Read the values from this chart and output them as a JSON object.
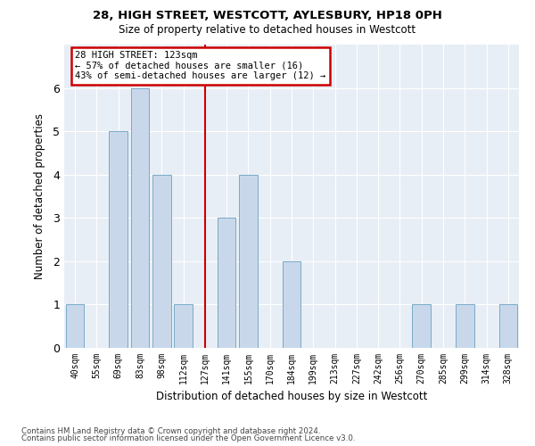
{
  "title1": "28, HIGH STREET, WESTCOTT, AYLESBURY, HP18 0PH",
  "title2": "Size of property relative to detached houses in Westcott",
  "xlabel": "Distribution of detached houses by size in Westcott",
  "ylabel": "Number of detached properties",
  "bins": [
    "40sqm",
    "55sqm",
    "69sqm",
    "83sqm",
    "98sqm",
    "112sqm",
    "127sqm",
    "141sqm",
    "155sqm",
    "170sqm",
    "184sqm",
    "199sqm",
    "213sqm",
    "227sqm",
    "242sqm",
    "256sqm",
    "270sqm",
    "285sqm",
    "299sqm",
    "314sqm",
    "328sqm"
  ],
  "counts": [
    1,
    0,
    5,
    6,
    4,
    1,
    0,
    3,
    4,
    0,
    2,
    0,
    0,
    0,
    0,
    0,
    1,
    0,
    1,
    0,
    1
  ],
  "subject_bin_index": 6,
  "annotation_lines": [
    "28 HIGH STREET: 123sqm",
    "← 57% of detached houses are smaller (16)",
    "43% of semi-detached houses are larger (12) →"
  ],
  "bar_color": "#c8d8ea",
  "bar_edge_color": "#7aaac8",
  "ref_line_color": "#cc0000",
  "annotation_box_color": "#cc0000",
  "bg_color": "#e8eef5",
  "grid_color": "#ffffff",
  "ylim": [
    0,
    7
  ],
  "yticks": [
    0,
    1,
    2,
    3,
    4,
    5,
    6,
    7
  ],
  "footer1": "Contains HM Land Registry data © Crown copyright and database right 2024.",
  "footer2": "Contains public sector information licensed under the Open Government Licence v3.0."
}
